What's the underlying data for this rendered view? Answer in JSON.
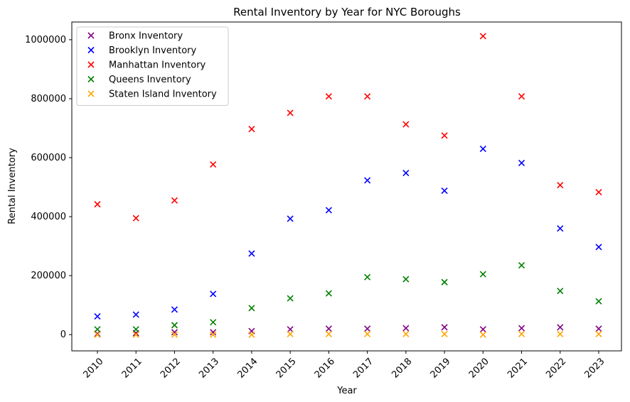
{
  "chart_data": {
    "type": "scatter",
    "title": "Rental Inventory by Year for NYC Boroughs",
    "xlabel": "Year",
    "ylabel": "Rental Inventory",
    "x": [
      2010,
      2011,
      2012,
      2013,
      2014,
      2015,
      2016,
      2017,
      2018,
      2019,
      2020,
      2021,
      2022,
      2023
    ],
    "x_tick_labels": [
      "2010",
      "2011",
      "2012",
      "2013",
      "2014",
      "2015",
      "2016",
      "2017",
      "2018",
      "2019",
      "2020",
      "2021",
      "2022",
      "2023"
    ],
    "ylim": [
      -55000,
      1060000
    ],
    "y_ticks": [
      0,
      200000,
      400000,
      600000,
      800000,
      1000000
    ],
    "y_tick_labels": [
      "0",
      "200000",
      "400000",
      "600000",
      "800000",
      "1000000"
    ],
    "legend_position": "top-left",
    "marker": "x",
    "series": [
      {
        "name": "Bronx Inventory",
        "color": "#800080",
        "values": [
          3000,
          5000,
          8000,
          8000,
          12000,
          18000,
          20000,
          20000,
          22000,
          25000,
          18000,
          22000,
          25000,
          20000
        ]
      },
      {
        "name": "Brooklyn Inventory",
        "color": "#0000ff",
        "values": [
          62000,
          68000,
          85000,
          138000,
          275000,
          393000,
          422000,
          523000,
          548000,
          488000,
          630000,
          582000,
          360000,
          297000
        ]
      },
      {
        "name": "Manhattan Inventory",
        "color": "#ff0000",
        "values": [
          442000,
          395000,
          455000,
          577000,
          697000,
          752000,
          808000,
          808000,
          713000,
          675000,
          1012000,
          808000,
          507000,
          483000
        ]
      },
      {
        "name": "Queens Inventory",
        "color": "#008000",
        "values": [
          18000,
          18000,
          32000,
          42000,
          90000,
          123000,
          140000,
          195000,
          188000,
          178000,
          205000,
          235000,
          148000,
          113000
        ]
      },
      {
        "name": "Staten Island Inventory",
        "color": "#ffa500",
        "values": [
          0,
          0,
          0,
          0,
          0,
          2000,
          2000,
          2000,
          2000,
          2000,
          0,
          2000,
          2000,
          2000
        ]
      }
    ]
  }
}
